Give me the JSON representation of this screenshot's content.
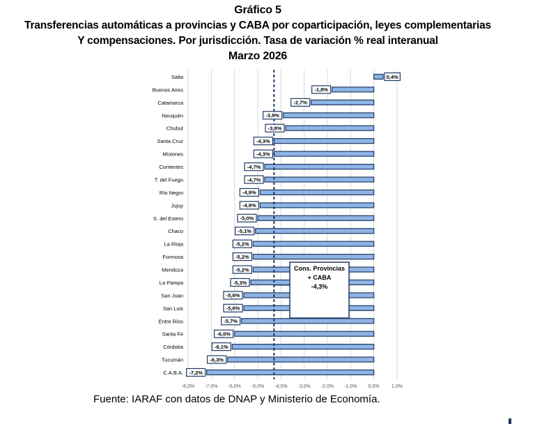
{
  "header": {
    "figure_label": "Gráfico 5",
    "title_line1": "Transferencias automáticas  a provincias  y CABA por coparticipación,  leyes complementarias",
    "title_line2": "Y compensaciones.  Por jurisdicción. Tasa de variación % real interanual",
    "period": "Marzo 2026"
  },
  "footer": {
    "source": "Fuente: IARAF con datos de DNAP y Ministerio de Economía."
  },
  "chart_data": {
    "type": "bar",
    "orientation": "horizontal",
    "title": "Transferencias automáticas a provincias y CABA por coparticipación, leyes complementarias Y compensaciones. Por jurisdicción. Tasa de variación % real interanual — Marzo 2026",
    "xlabel": "",
    "ylabel": "",
    "xlim": [
      -8.0,
      1.0
    ],
    "x_ticks": [
      -8.0,
      -7.0,
      -6.0,
      -5.0,
      -4.0,
      -3.0,
      -2.0,
      -1.0,
      0.0,
      1.0
    ],
    "x_tick_labels": [
      "-8,0%",
      "-7,0%",
      "-6,0%",
      "-5,0%",
      "-4,0%",
      "-3,0%",
      "-2,0%",
      "-1,0%",
      "0,0%",
      "1,0%"
    ],
    "grid": true,
    "categories": [
      "Salta",
      "Buenos Aires",
      "Catamarca",
      "Neuquén",
      "Chubut",
      "Santa Cruz",
      "Misiones",
      "Corrientes",
      "T. del Fuego",
      "Río Negro",
      "Jujuy",
      "S. del Estero",
      "Chaco",
      "La Rioja",
      "Formosa",
      "Mendoza",
      "La Pampa",
      "San Juan",
      "San Luis",
      "Entre Ríos",
      "Santa Fe",
      "Córdoba",
      "Tucumán",
      "C.A.B.A."
    ],
    "values": [
      0.4,
      -1.8,
      -2.7,
      -3.9,
      -3.8,
      -4.3,
      -4.3,
      -4.7,
      -4.7,
      -4.9,
      -4.9,
      -5.0,
      -5.1,
      -5.2,
      -5.2,
      -5.2,
      -5.3,
      -5.6,
      -5.6,
      -5.7,
      -6.0,
      -6.1,
      -6.3,
      -7.2
    ],
    "data_labels": [
      "0,4%",
      "-1,8%",
      "-2,7%",
      "-3,9%",
      "-3,8%",
      "-4,3%",
      "-4,3%",
      "-4,7%",
      "-4,7%",
      "-4,9%",
      "-4,9%",
      "-5,0%",
      "-5,1%",
      "-5,2%",
      "-5,2%",
      "-5,2%",
      "-5,3%",
      "-5,6%",
      "-5,6%",
      "-5,7%",
      "-6,0%",
      "-6,1%",
      "-6,3%",
      "-7,2%"
    ],
    "reference_line": {
      "value": -4.3,
      "style": "dotted"
    },
    "annotation": {
      "lines": [
        "Cons. Provincias",
        "+ CABA",
        "-4,3%"
      ]
    },
    "colors": {
      "bar_fill": "#8eb4e3",
      "bar_edge": "#1f3864",
      "reference_line": "#1f3864",
      "grid": "#d9d9d9"
    }
  }
}
